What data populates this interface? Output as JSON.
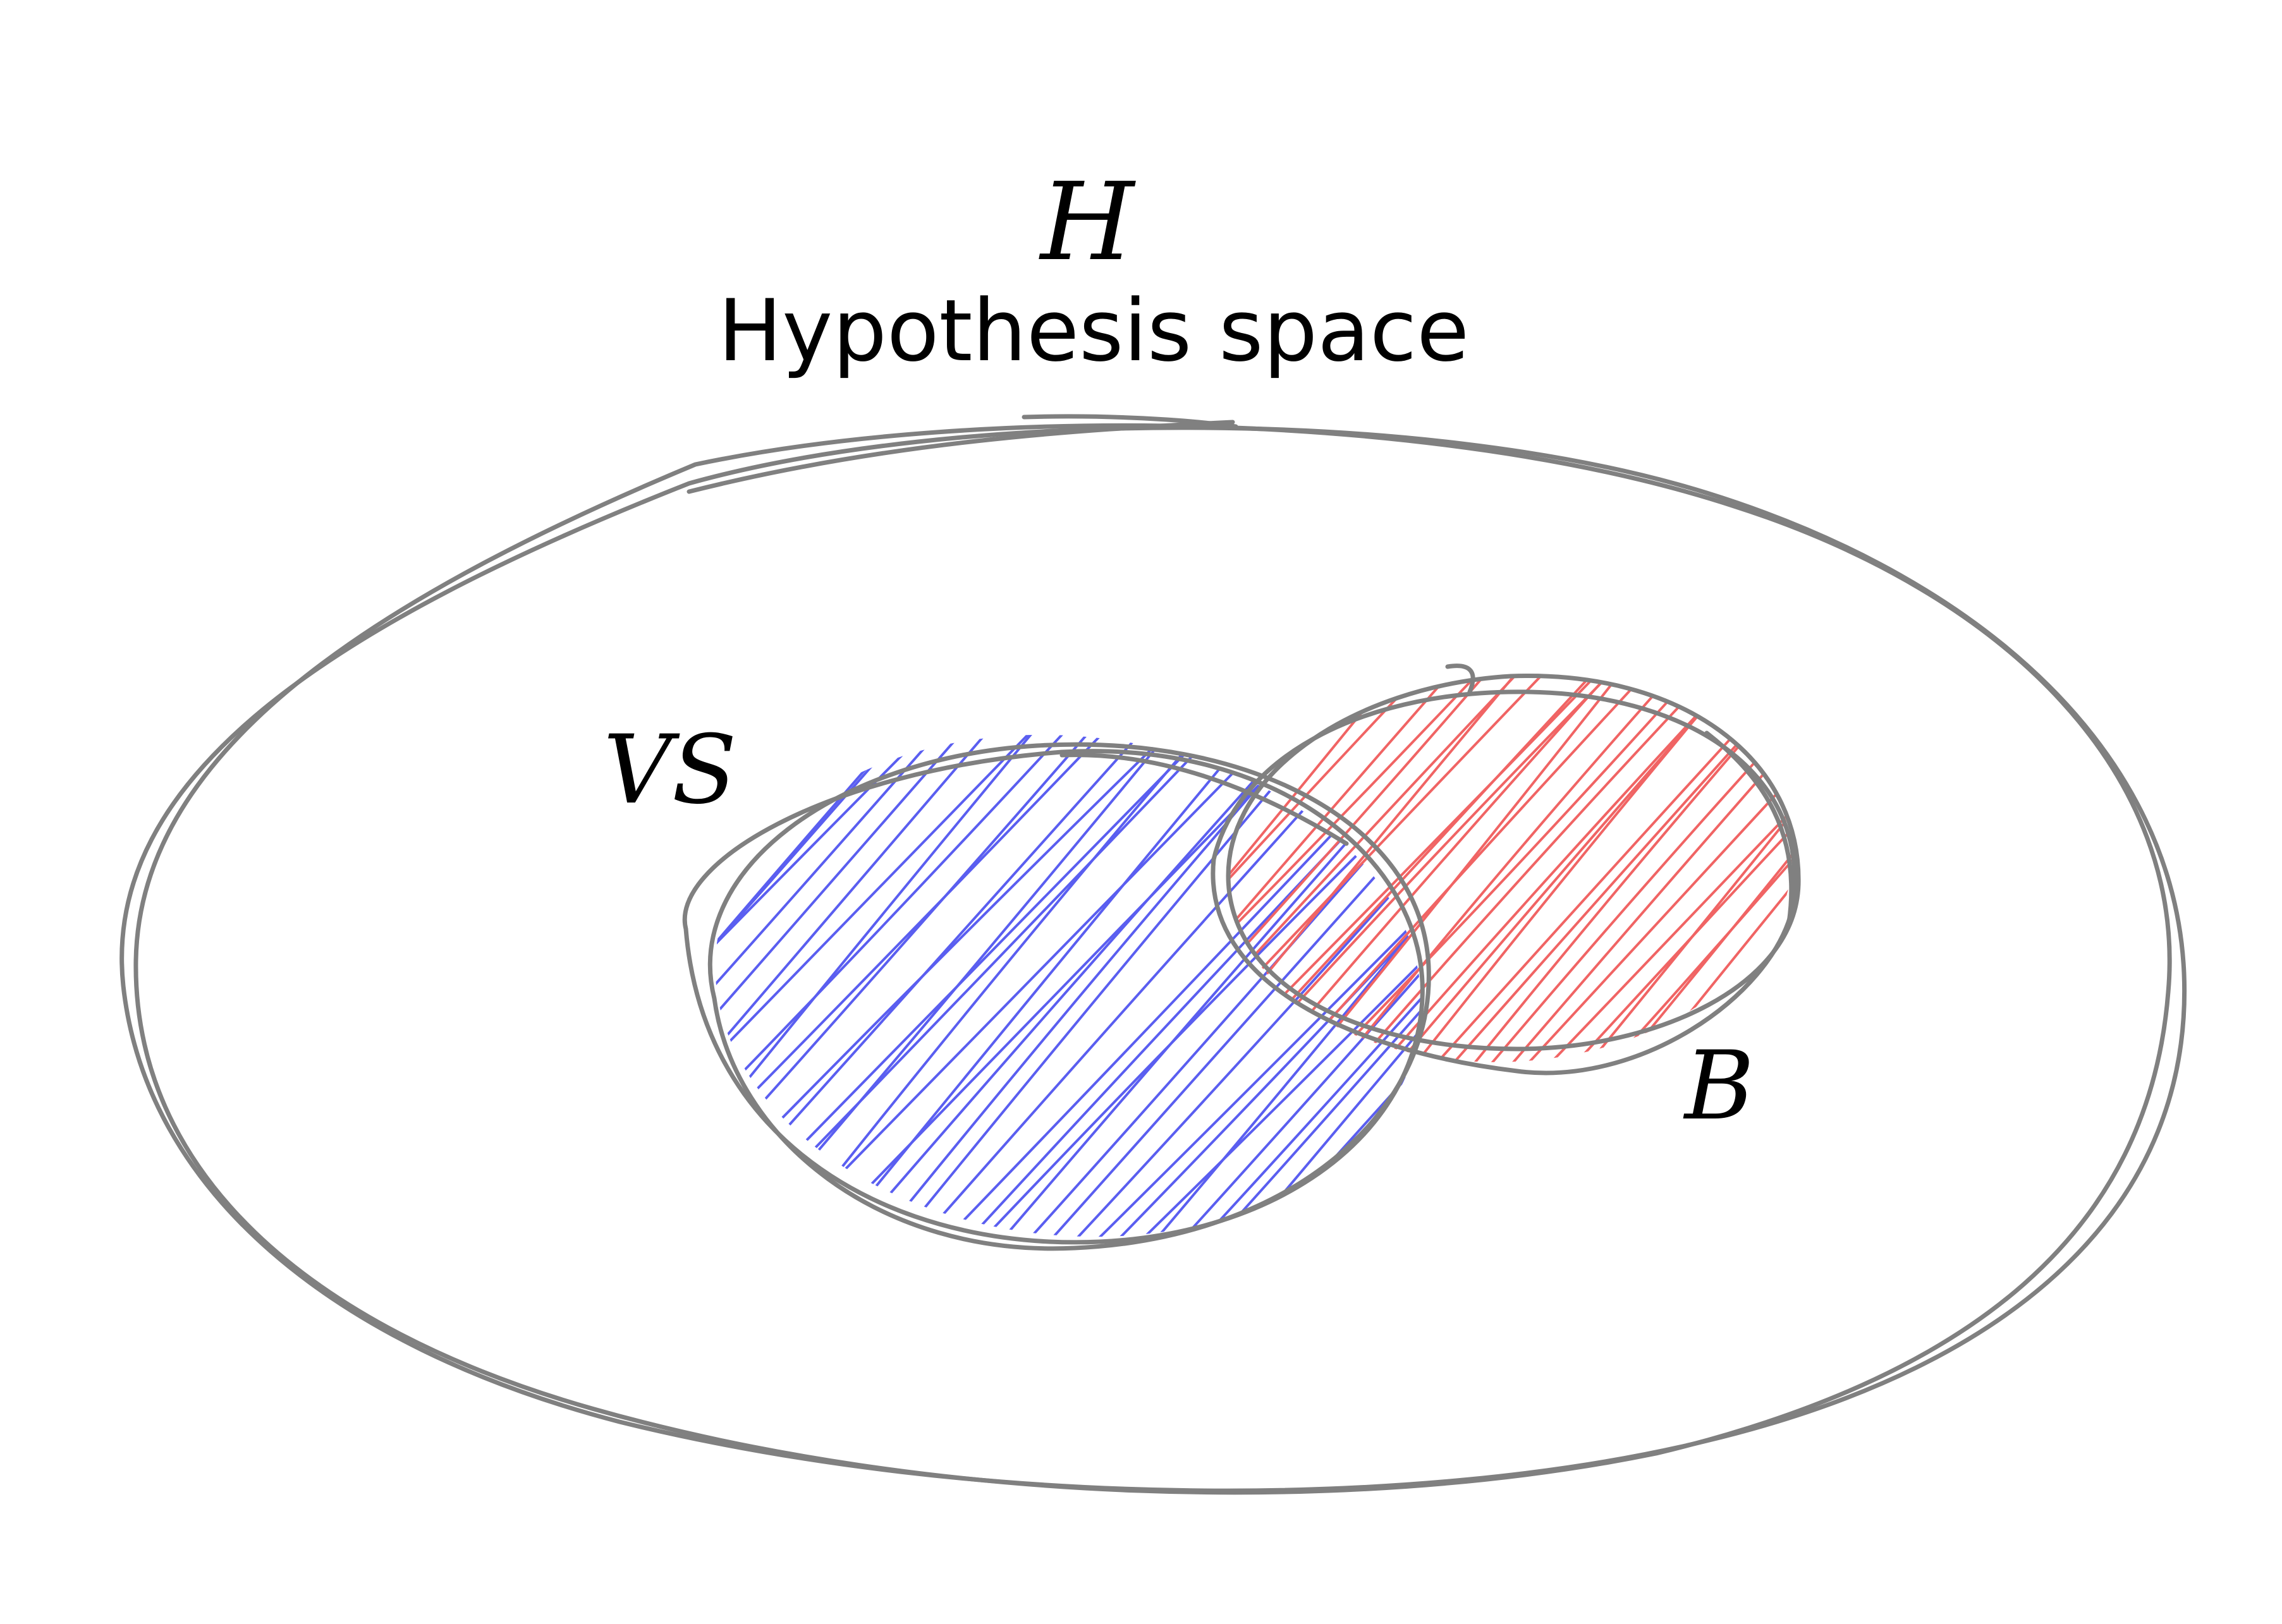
{
  "hypothesis_space": {
    "symbol": "H",
    "caption": "Hypothesis space"
  },
  "version_space": {
    "symbol": "VS"
  },
  "set_b": {
    "symbol": "B"
  },
  "colors": {
    "outline": "#808080",
    "version_space_hatch": "#5a5ef0",
    "set_b_hatch": "#f06464",
    "background": "#ffffff"
  }
}
